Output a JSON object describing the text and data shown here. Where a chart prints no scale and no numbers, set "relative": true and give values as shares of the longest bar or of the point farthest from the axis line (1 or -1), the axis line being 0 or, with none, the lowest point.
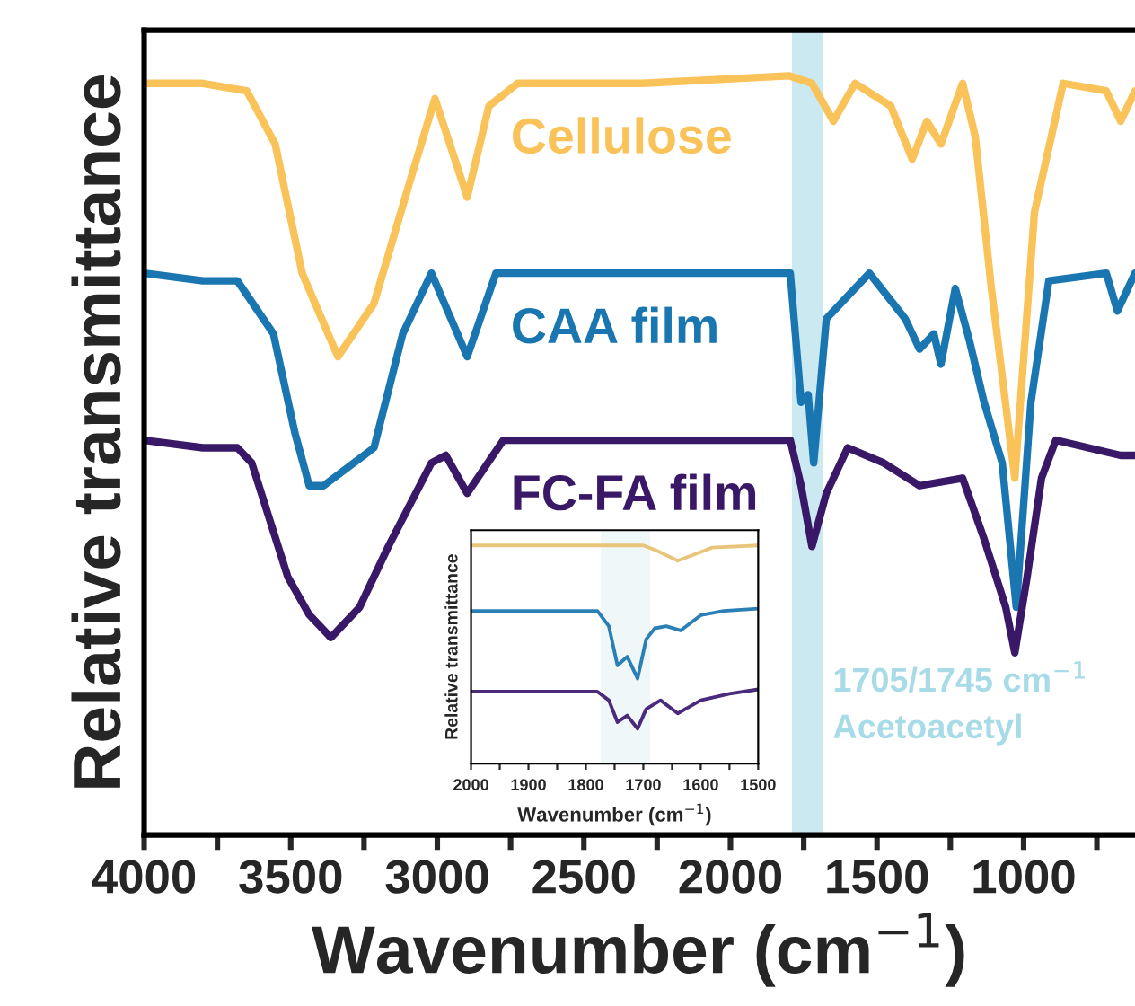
{
  "chart_data": [
    {
      "type": "line",
      "xlabel": "Wavenumber (cm$^{−1}$)",
      "ylabel": "Relative transmittance",
      "relative": true,
      "grid": false,
      "legend": false,
      "line_style": "solid",
      "marker": "none",
      "xlim": [
        4000,
        620
      ],
      "xticks": [
        4000,
        {
          "value": 3750,
          "label": null
        },
        3500,
        {
          "value": 3250,
          "label": null
        },
        3000,
        {
          "value": 2750,
          "label": null
        },
        2500,
        {
          "value": 2250,
          "label": null
        },
        2000,
        {
          "value": 1750,
          "label": null
        },
        1500,
        {
          "value": 1250,
          "label": null
        },
        1000,
        {
          "value": 750,
          "label": null
        }
      ],
      "bands": [
        {
          "axis": "x",
          "from": 1790,
          "to": 1685,
          "label": "1705/1745 cm$^{−1}$\nAcetoacetyl",
          "color": "#a8dbe8"
        }
      ],
      "series": [
        {
          "name": "Cellulose",
          "color": "#f9c35a",
          "x": [
            4000,
            3800,
            3650,
            3553,
            3461,
            3339,
            3216,
            3094,
            3008,
            2898,
            2824,
            2726,
            2300,
            1800,
            1722,
            1649,
            1575,
            1453,
            1380,
            1330,
            1282,
            1208,
            1165,
            1110,
            1030,
            963,
            865,
            718,
            669,
            620
          ],
          "values": [
            0.99,
            0.99,
            0.98,
            0.91,
            0.74,
            0.63,
            0.7,
            0.86,
            0.97,
            0.84,
            0.96,
            0.99,
            0.99,
            1.0,
            0.99,
            0.94,
            0.99,
            0.96,
            0.89,
            0.94,
            0.91,
            0.99,
            0.92,
            0.72,
            0.47,
            0.82,
            0.99,
            0.98,
            0.94,
            0.98
          ]
        },
        {
          "name": "CAA film",
          "color": "#1a76b0",
          "x": [
            4000,
            3800,
            3682,
            3559,
            3486,
            3437,
            3388,
            3216,
            3118,
            3020,
            2898,
            2800,
            2300,
            1796,
            1759,
            1735,
            1716,
            1673,
            1526,
            1404,
            1355,
            1306,
            1282,
            1233,
            1184,
            1135,
            1073,
            1025,
            975,
            914,
            718,
            680,
            620
          ],
          "values": [
            0.74,
            0.73,
            0.73,
            0.66,
            0.53,
            0.46,
            0.46,
            0.51,
            0.66,
            0.74,
            0.63,
            0.74,
            0.74,
            0.74,
            0.57,
            0.58,
            0.49,
            0.68,
            0.74,
            0.68,
            0.64,
            0.66,
            0.62,
            0.72,
            0.65,
            0.57,
            0.49,
            0.3,
            0.57,
            0.73,
            0.74,
            0.69,
            0.74
          ]
        },
        {
          "name": "FC-FA film",
          "color": "#3a1868",
          "x": [
            4000,
            3800,
            3682,
            3633,
            3510,
            3437,
            3363,
            3265,
            3167,
            3020,
            2971,
            2898,
            2775,
            2300,
            1796,
            1759,
            1722,
            1673,
            1600,
            1477,
            1355,
            1208,
            1135,
            1061,
            1030,
            988,
            939,
            890,
            669,
            620
          ],
          "values": [
            0.52,
            0.51,
            0.51,
            0.49,
            0.34,
            0.29,
            0.26,
            0.3,
            0.38,
            0.49,
            0.5,
            0.45,
            0.52,
            0.52,
            0.52,
            0.46,
            0.38,
            0.45,
            0.51,
            0.49,
            0.46,
            0.47,
            0.39,
            0.3,
            0.24,
            0.34,
            0.47,
            0.52,
            0.5,
            0.5
          ]
        }
      ]
    },
    {
      "type": "line",
      "xlabel": "Wavenumber (cm$^{−1}$)",
      "ylabel": "Relative transmittance",
      "relative": true,
      "grid": false,
      "legend": false,
      "line_style": "solid",
      "marker": "none",
      "xlim": [
        2000,
        1500
      ],
      "xticks": [
        2000,
        {
          "value": 1950,
          "label": null
        },
        1900,
        {
          "value": 1850,
          "label": null
        },
        1800,
        {
          "value": 1750,
          "label": null
        },
        1700,
        {
          "value": 1650,
          "label": null
        },
        1600,
        {
          "value": 1550,
          "label": null
        },
        1500
      ],
      "bands": [
        {
          "axis": "x",
          "from": 1774,
          "to": 1688,
          "color": "#e6f1f3"
        }
      ],
      "series": [
        {
          "color": "#e8c57a",
          "x": [
            2000,
            1900,
            1800,
            1700,
            1680,
            1640,
            1610,
            1580,
            1500
          ],
          "values": [
            1.0,
            1.0,
            1.0,
            1.0,
            0.98,
            0.93,
            0.96,
            0.99,
            1.0
          ]
        },
        {
          "color": "#2a7fb5",
          "x": [
            2000,
            1900,
            1780,
            1760,
            1745,
            1728,
            1710,
            1695,
            1680,
            1660,
            1635,
            1600,
            1560,
            1500
          ],
          "values": [
            0.7,
            0.7,
            0.7,
            0.63,
            0.45,
            0.49,
            0.39,
            0.57,
            0.62,
            0.63,
            0.61,
            0.68,
            0.7,
            0.71
          ]
        },
        {
          "color": "#4a2a7a",
          "x": [
            2000,
            1900,
            1780,
            1760,
            1745,
            1728,
            1710,
            1695,
            1670,
            1640,
            1600,
            1550,
            1500
          ],
          "values": [
            0.33,
            0.33,
            0.33,
            0.29,
            0.19,
            0.22,
            0.16,
            0.25,
            0.29,
            0.23,
            0.29,
            0.32,
            0.34
          ]
        }
      ]
    }
  ]
}
